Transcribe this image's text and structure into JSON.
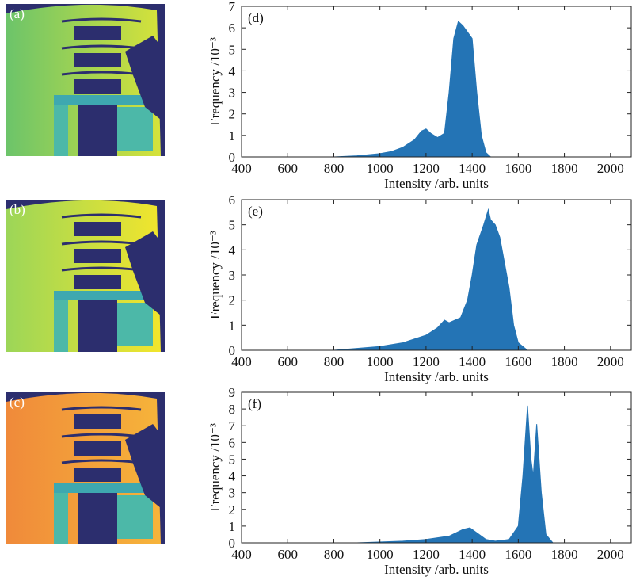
{
  "image_panels": [
    {
      "label": "(a)"
    },
    {
      "label": "(b)"
    },
    {
      "label": "(c)"
    }
  ],
  "chart_data": [
    {
      "type": "area",
      "panel_label": "(d)",
      "color": "#2474b5",
      "x": [
        800,
        900,
        1000,
        1050,
        1100,
        1150,
        1180,
        1200,
        1220,
        1250,
        1280,
        1300,
        1320,
        1340,
        1360,
        1380,
        1400,
        1420,
        1440,
        1460,
        1480
      ],
      "values": [
        0,
        0.05,
        0.15,
        0.25,
        0.45,
        0.8,
        1.2,
        1.3,
        1.1,
        0.9,
        1.1,
        3,
        5.5,
        6.3,
        6.1,
        5.8,
        5.5,
        3,
        1,
        0.2,
        0
      ],
      "xlim": [
        400,
        2090
      ],
      "ylim": [
        0,
        7
      ],
      "xticks": [
        400,
        600,
        800,
        1000,
        1200,
        1400,
        1600,
        1800,
        2000
      ],
      "yticks": [
        0,
        1,
        2,
        3,
        4,
        5,
        6,
        7
      ],
      "xlabel": "Intensity /arb. units",
      "ylabel": "Frequency /10⁻³"
    },
    {
      "type": "area",
      "panel_label": "(e)",
      "color": "#2474b5",
      "x": [
        800,
        1000,
        1100,
        1200,
        1250,
        1280,
        1300,
        1350,
        1380,
        1400,
        1420,
        1450,
        1470,
        1480,
        1500,
        1520,
        1540,
        1560,
        1580,
        1600,
        1640
      ],
      "values": [
        0,
        0.15,
        0.3,
        0.6,
        0.9,
        1.2,
        1.1,
        1.3,
        2,
        3,
        4.2,
        5,
        5.6,
        5.2,
        5,
        4.5,
        3.5,
        2.5,
        1,
        0.3,
        0
      ],
      "xlim": [
        400,
        2090
      ],
      "ylim": [
        0,
        6
      ],
      "xticks": [
        400,
        600,
        800,
        1000,
        1200,
        1400,
        1600,
        1800,
        2000
      ],
      "yticks": [
        0,
        1,
        2,
        3,
        4,
        5,
        6
      ],
      "xlabel": "Intensity /arb. units",
      "ylabel": "Frequency /10⁻³"
    },
    {
      "type": "area",
      "panel_label": "(f)",
      "color": "#2474b5",
      "x": [
        900,
        1100,
        1200,
        1300,
        1360,
        1390,
        1420,
        1460,
        1500,
        1560,
        1600,
        1620,
        1640,
        1655,
        1665,
        1680,
        1700,
        1720,
        1750
      ],
      "values": [
        0,
        0.1,
        0.2,
        0.4,
        0.8,
        0.9,
        0.6,
        0.2,
        0.1,
        0.2,
        1,
        4,
        8.2,
        5,
        4,
        7.1,
        3,
        0.5,
        0
      ],
      "xlim": [
        400,
        2090
      ],
      "ylim": [
        0,
        9
      ],
      "xticks": [
        400,
        600,
        800,
        1000,
        1200,
        1400,
        1600,
        1800,
        2000
      ],
      "yticks": [
        0,
        1,
        2,
        3,
        4,
        5,
        6,
        7,
        8,
        9
      ],
      "xlabel": "Intensity /arb. units",
      "ylabel": "Frequency /10⁻³"
    }
  ]
}
